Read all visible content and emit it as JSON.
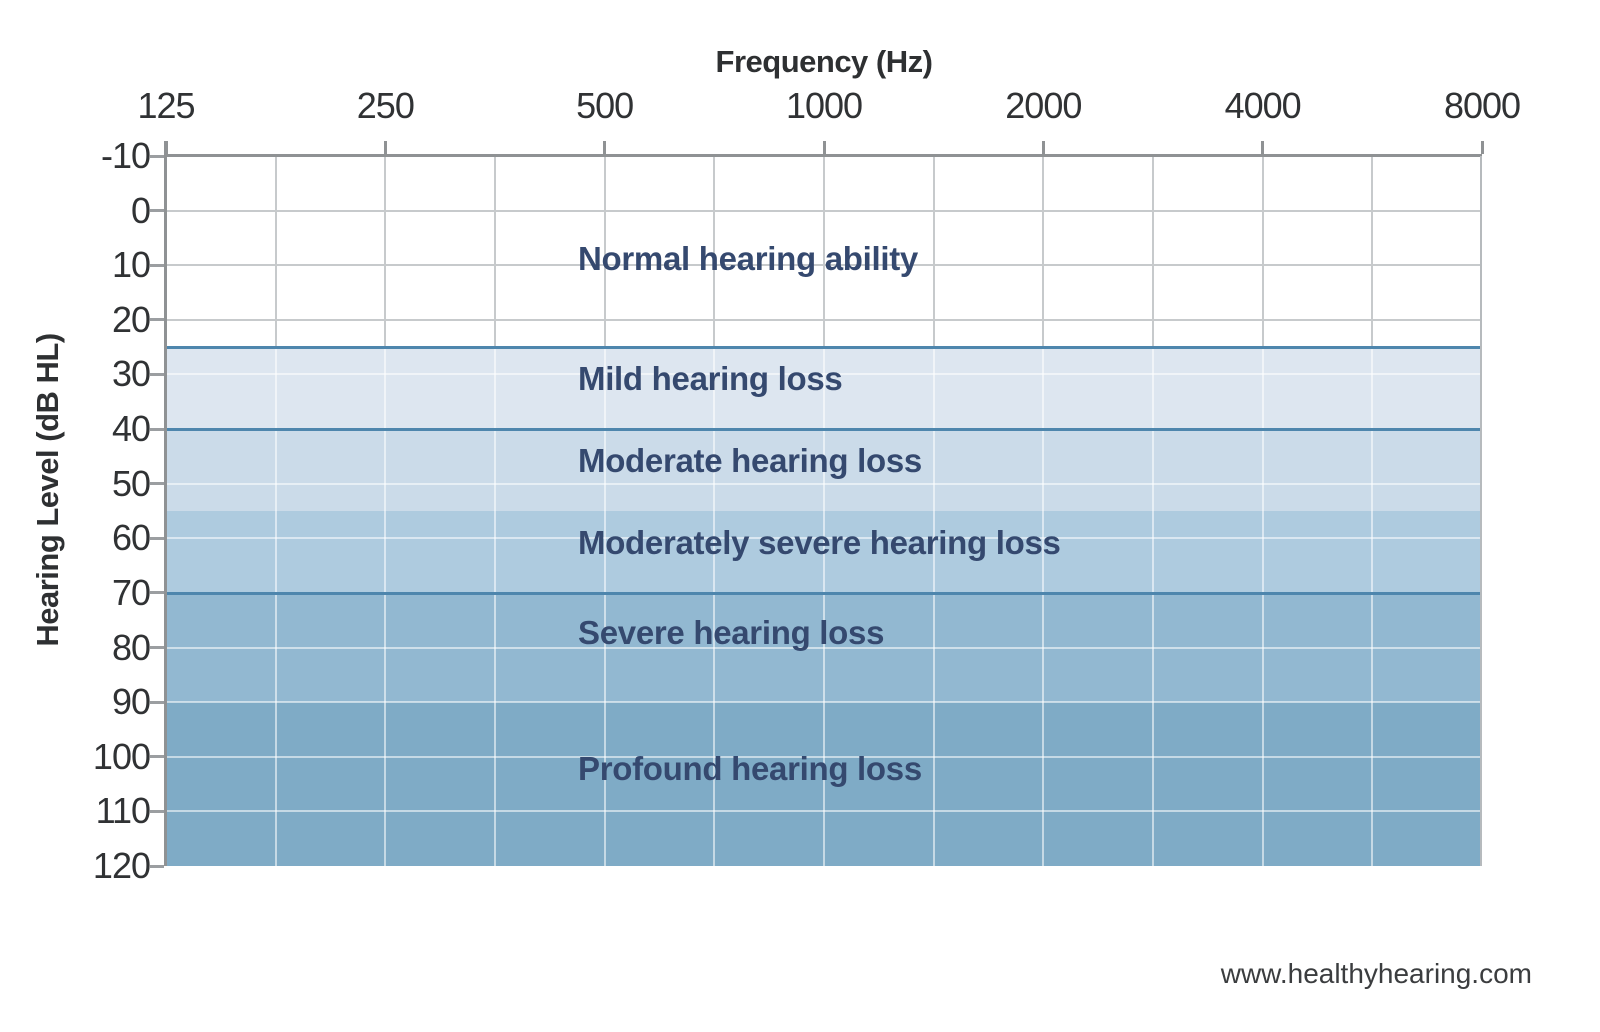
{
  "chart_data": {
    "type": "area",
    "title": "",
    "grid": true,
    "legend": "none",
    "x_axis": {
      "label": "Frequency (Hz)",
      "scale": "log2-octave",
      "tick_labels": [
        "125",
        "250",
        "500",
        "1000",
        "2000",
        "4000",
        "8000"
      ],
      "minor_gridlines_per_octave": 2
    },
    "y_axis": {
      "label": "Hearing Level (dB HL)",
      "min": -10,
      "max": 120,
      "tick_step": 10,
      "tick_labels": [
        "-10",
        "0",
        "10",
        "20",
        "30",
        "40",
        "50",
        "60",
        "70",
        "80",
        "90",
        "100",
        "110",
        "120"
      ]
    },
    "bands": [
      {
        "label": "Normal hearing ability",
        "from_db": -10,
        "to_db": 25,
        "fill": "#ffffff",
        "top_border": false,
        "label_db": 9
      },
      {
        "label": "Mild hearing loss",
        "from_db": 25,
        "to_db": 40,
        "fill": "#dde6f0",
        "top_border": true,
        "label_db": 31
      },
      {
        "label": "Moderate hearing loss",
        "from_db": 40,
        "to_db": 55,
        "fill": "#cbdbe9",
        "top_border": true,
        "label_db": 46
      },
      {
        "label": "Moderately severe hearing loss",
        "from_db": 55,
        "to_db": 70,
        "fill": "#aecbdf",
        "top_border": false,
        "label_db": 61
      },
      {
        "label": "Severe hearing loss",
        "from_db": 70,
        "to_db": 90,
        "fill": "#92b8d1",
        "top_border": true,
        "label_db": 77.5
      },
      {
        "label": "Profound hearing loss",
        "from_db": 90,
        "to_db": 120,
        "fill": "#7fabc6",
        "top_border": false,
        "label_db": 102.5
      }
    ],
    "colors": {
      "band_top_border": "#4e86ad",
      "band_label_text": "#35496f",
      "axis_line": "#8f9294",
      "right_border": "#b6babd",
      "tick_mark": "#9b9ea1",
      "gridline_on_white": "#c7cacc",
      "gridline_on_band": "rgba(255,255,255,0.55)",
      "tick_text": "#303234"
    }
  },
  "footer": {
    "watermark": "www.healthyhearing.com"
  }
}
